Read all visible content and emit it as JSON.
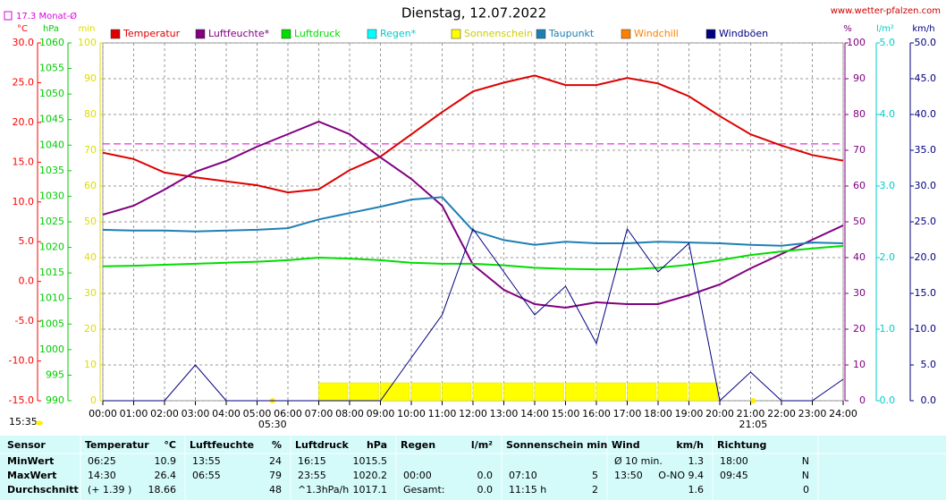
{
  "chart_data": {
    "type": "line",
    "title": "Dienstag, 12.07.2022",
    "source": "www.wetter-pfalzen.com",
    "updated": "15:35",
    "reference_line": {
      "label": "17.3 Monat-Ø",
      "value": 17.3,
      "color": "#dd00dd",
      "axis": 0
    },
    "annotations": [
      {
        "label": "05:30",
        "x": 5.5
      },
      {
        "label": "21:05",
        "x": 21.083
      }
    ],
    "xlim": [
      0,
      24
    ],
    "xticks": [
      {
        "value": 0,
        "label": "00:00"
      },
      {
        "value": 1,
        "label": "01:00"
      },
      {
        "value": 2,
        "label": "02:00"
      },
      {
        "value": 3,
        "label": "03:00"
      },
      {
        "value": 4,
        "label": "04:00"
      },
      {
        "value": 5,
        "label": "05:00"
      },
      {
        "value": 6,
        "label": "06:00"
      },
      {
        "value": 7,
        "label": "07:00"
      },
      {
        "value": 8,
        "label": "08:00"
      },
      {
        "value": 9,
        "label": "09:00"
      },
      {
        "value": 10,
        "label": "10:00"
      },
      {
        "value": 11,
        "label": "11:00"
      },
      {
        "value": 12,
        "label": "12:00"
      },
      {
        "value": 13,
        "label": "13:00"
      },
      {
        "value": 14,
        "label": "14:00"
      },
      {
        "value": 15,
        "label": "15:00"
      },
      {
        "value": 16,
        "label": "16:00"
      },
      {
        "value": 17,
        "label": "17:00"
      },
      {
        "value": 18,
        "label": "18:00"
      },
      {
        "value": 19,
        "label": "19:00"
      },
      {
        "value": 20,
        "label": "20:00"
      },
      {
        "value": 21,
        "label": "21:00"
      },
      {
        "value": 22,
        "label": "22:00"
      },
      {
        "value": 23,
        "label": "23:00"
      },
      {
        "value": 24,
        "label": "24:00"
      }
    ],
    "axes": [
      {
        "label": "°C",
        "color": "#ff0000",
        "side": "left",
        "ylim": [
          -15,
          30
        ],
        "yticks": [
          {
            "value": -15,
            "label": "-15.0"
          },
          {
            "value": -10,
            "label": "-10.0"
          },
          {
            "value": -5,
            "label": "-5.0"
          },
          {
            "value": 0,
            "label": "0.0"
          },
          {
            "value": 5,
            "label": "5.0"
          },
          {
            "value": 10,
            "label": "10.0"
          },
          {
            "value": 15,
            "label": "15.0"
          },
          {
            "value": 20,
            "label": "20.0"
          },
          {
            "value": 25,
            "label": "25.0"
          },
          {
            "value": 30,
            "label": "30.0"
          }
        ]
      },
      {
        "label": "hPa",
        "color": "#00cc00",
        "side": "left",
        "ylim": [
          990,
          1060
        ],
        "yticks": [
          990,
          995,
          1000,
          1005,
          1010,
          1015,
          1020,
          1025,
          1030,
          1035,
          1040,
          1045,
          1050,
          1055,
          1060
        ]
      },
      {
        "label": "min",
        "color": "#dddd00",
        "side": "left",
        "ylim": [
          0,
          100
        ],
        "yticks": [
          0,
          10,
          20,
          30,
          40,
          50,
          60,
          70,
          80,
          90,
          100
        ]
      },
      {
        "label": "%",
        "color": "#800080",
        "side": "right",
        "ylim": [
          0,
          100
        ],
        "yticks": [
          0,
          10,
          20,
          30,
          40,
          50,
          60,
          70,
          80,
          90,
          100
        ],
        "grid": true
      },
      {
        "label": "l/m²",
        "color": "#00cccc",
        "side": "right",
        "ylim": [
          0,
          5
        ],
        "yticks": [
          {
            "value": 0,
            "label": "0.0"
          },
          {
            "value": 1,
            "label": "1.0"
          },
          {
            "value": 2,
            "label": "2.0"
          },
          {
            "value": 3,
            "label": "3.0"
          },
          {
            "value": 4,
            "label": "4.0"
          },
          {
            "value": 5,
            "label": "5.0"
          }
        ]
      },
      {
        "label": "km/h",
        "color": "#000080",
        "side": "right",
        "ylim": [
          0,
          50
        ],
        "yticks": [
          {
            "value": 0,
            "label": "0.0"
          },
          {
            "value": 5,
            "label": "5.0"
          },
          {
            "value": 10,
            "label": "10.0"
          },
          {
            "value": 15,
            "label": "15.0"
          },
          {
            "value": 20,
            "label": "20.0"
          },
          {
            "value": 25,
            "label": "25.0"
          },
          {
            "value": 30,
            "label": "30.0"
          },
          {
            "value": 35,
            "label": "35.0"
          },
          {
            "value": 40,
            "label": "40.0"
          },
          {
            "value": 45,
            "label": "45.0"
          },
          {
            "value": 50,
            "label": "50.0"
          }
        ]
      }
    ],
    "x": [
      0,
      1,
      2,
      3,
      4,
      5,
      6,
      7,
      8,
      9,
      10,
      11,
      12,
      13,
      14,
      15,
      16,
      17,
      18,
      19,
      20,
      21,
      22,
      23,
      24
    ],
    "series": [
      {
        "name": "Temperatur",
        "color": "#dd0000",
        "axis": 0,
        "values": [
          16.2,
          15.4,
          13.7,
          13.1,
          12.6,
          12.1,
          11.2,
          11.6,
          14.0,
          15.7,
          18.5,
          21.3,
          23.9,
          25.0,
          25.9,
          24.7,
          24.7,
          25.6,
          24.9,
          23.3,
          20.8,
          18.5,
          17.1,
          15.9,
          15.2
        ]
      },
      {
        "name": "Luftfeuchte*",
        "color": "#800080",
        "axis": 3,
        "values": [
          52,
          54.5,
          59,
          64,
          67,
          71,
          74.5,
          78,
          74.5,
          68,
          62,
          54.5,
          38,
          31,
          27,
          26,
          27.5,
          27,
          27,
          29.5,
          32.5,
          37,
          41,
          45,
          49
        ]
      },
      {
        "name": "Luftdruck",
        "color": "#00dd00",
        "axis": 1,
        "values": [
          1016.3,
          1016.4,
          1016.6,
          1016.8,
          1017.0,
          1017.2,
          1017.5,
          1018.0,
          1017.8,
          1017.5,
          1017.0,
          1016.8,
          1016.8,
          1016.5,
          1016.0,
          1015.8,
          1015.7,
          1015.7,
          1016.0,
          1016.6,
          1017.5,
          1018.5,
          1019.2,
          1019.8,
          1020.3
        ]
      },
      {
        "name": "Regen*",
        "color": "#00ffff",
        "axis": 4
      },
      {
        "name": "Sonnenschein",
        "color": "#ffff00",
        "axis": 2,
        "style": "bar",
        "x": [
          7,
          8,
          9,
          10,
          11,
          12,
          13,
          14,
          15,
          16,
          17,
          18,
          19
        ],
        "values": [
          5,
          5,
          5,
          5,
          5,
          5,
          5,
          5,
          5,
          5,
          5,
          5,
          5
        ]
      },
      {
        "name": "Taupunkt",
        "color": "#1e7fb4",
        "axis": 0,
        "values": [
          6.5,
          6.4,
          6.4,
          6.3,
          6.4,
          6.5,
          6.7,
          7.8,
          8.6,
          9.4,
          10.3,
          10.6,
          6.4,
          5.2,
          4.6,
          5.0,
          4.8,
          4.8,
          5.0,
          4.9,
          4.8,
          4.6,
          4.5,
          4.9,
          4.8
        ]
      },
      {
        "name": "Windchill",
        "color": "#ff8000",
        "axis": 0
      },
      {
        "name": "Windböen",
        "color": "#000080",
        "axis": 5,
        "values": [
          0,
          0,
          0,
          5,
          0,
          0,
          0,
          0,
          0,
          0,
          6,
          12,
          24,
          18,
          12,
          16,
          8,
          24,
          18,
          22,
          0,
          4,
          0,
          0,
          3
        ]
      }
    ]
  },
  "table": {
    "sensor": "Sensor",
    "groups": [
      {
        "name": "Temperatur",
        "unit": "°C"
      },
      {
        "name": "Luftfeuchte",
        "unit": "%"
      },
      {
        "name": "Luftdruck",
        "unit": "hPa"
      },
      {
        "name": "Regen",
        "unit": "l/m²"
      },
      {
        "name": "Sonnenschein min"
      },
      {
        "name": "Wind",
        "unit": "km/h"
      },
      {
        "name": "Richtung"
      }
    ],
    "rows": [
      {
        "label": "MinWert",
        "cells": [
          "06:25",
          "10.9",
          "13:55",
          "24",
          "16:15",
          "1015.5",
          null,
          null,
          null,
          null,
          "Ø 10 min.",
          "1.3",
          "18:00",
          "N"
        ]
      },
      {
        "label": "MaxWert",
        "cells": [
          "14:30",
          "26.4",
          "06:55",
          "79",
          "23:55",
          "1020.2",
          "00:00",
          "0.0",
          "07:10",
          "5",
          "13:50",
          "O-NO 9.4",
          "09:45",
          "N"
        ]
      },
      {
        "label": "Durchschnitt",
        "cells": [
          "(+ 1.39 )",
          "18.66",
          null,
          "48",
          "^1.3hPa/h",
          "1017.1",
          "Gesamt:",
          "0.0",
          "11:15 h",
          "2",
          null,
          "1.6",
          null,
          "0"
        ]
      }
    ]
  }
}
